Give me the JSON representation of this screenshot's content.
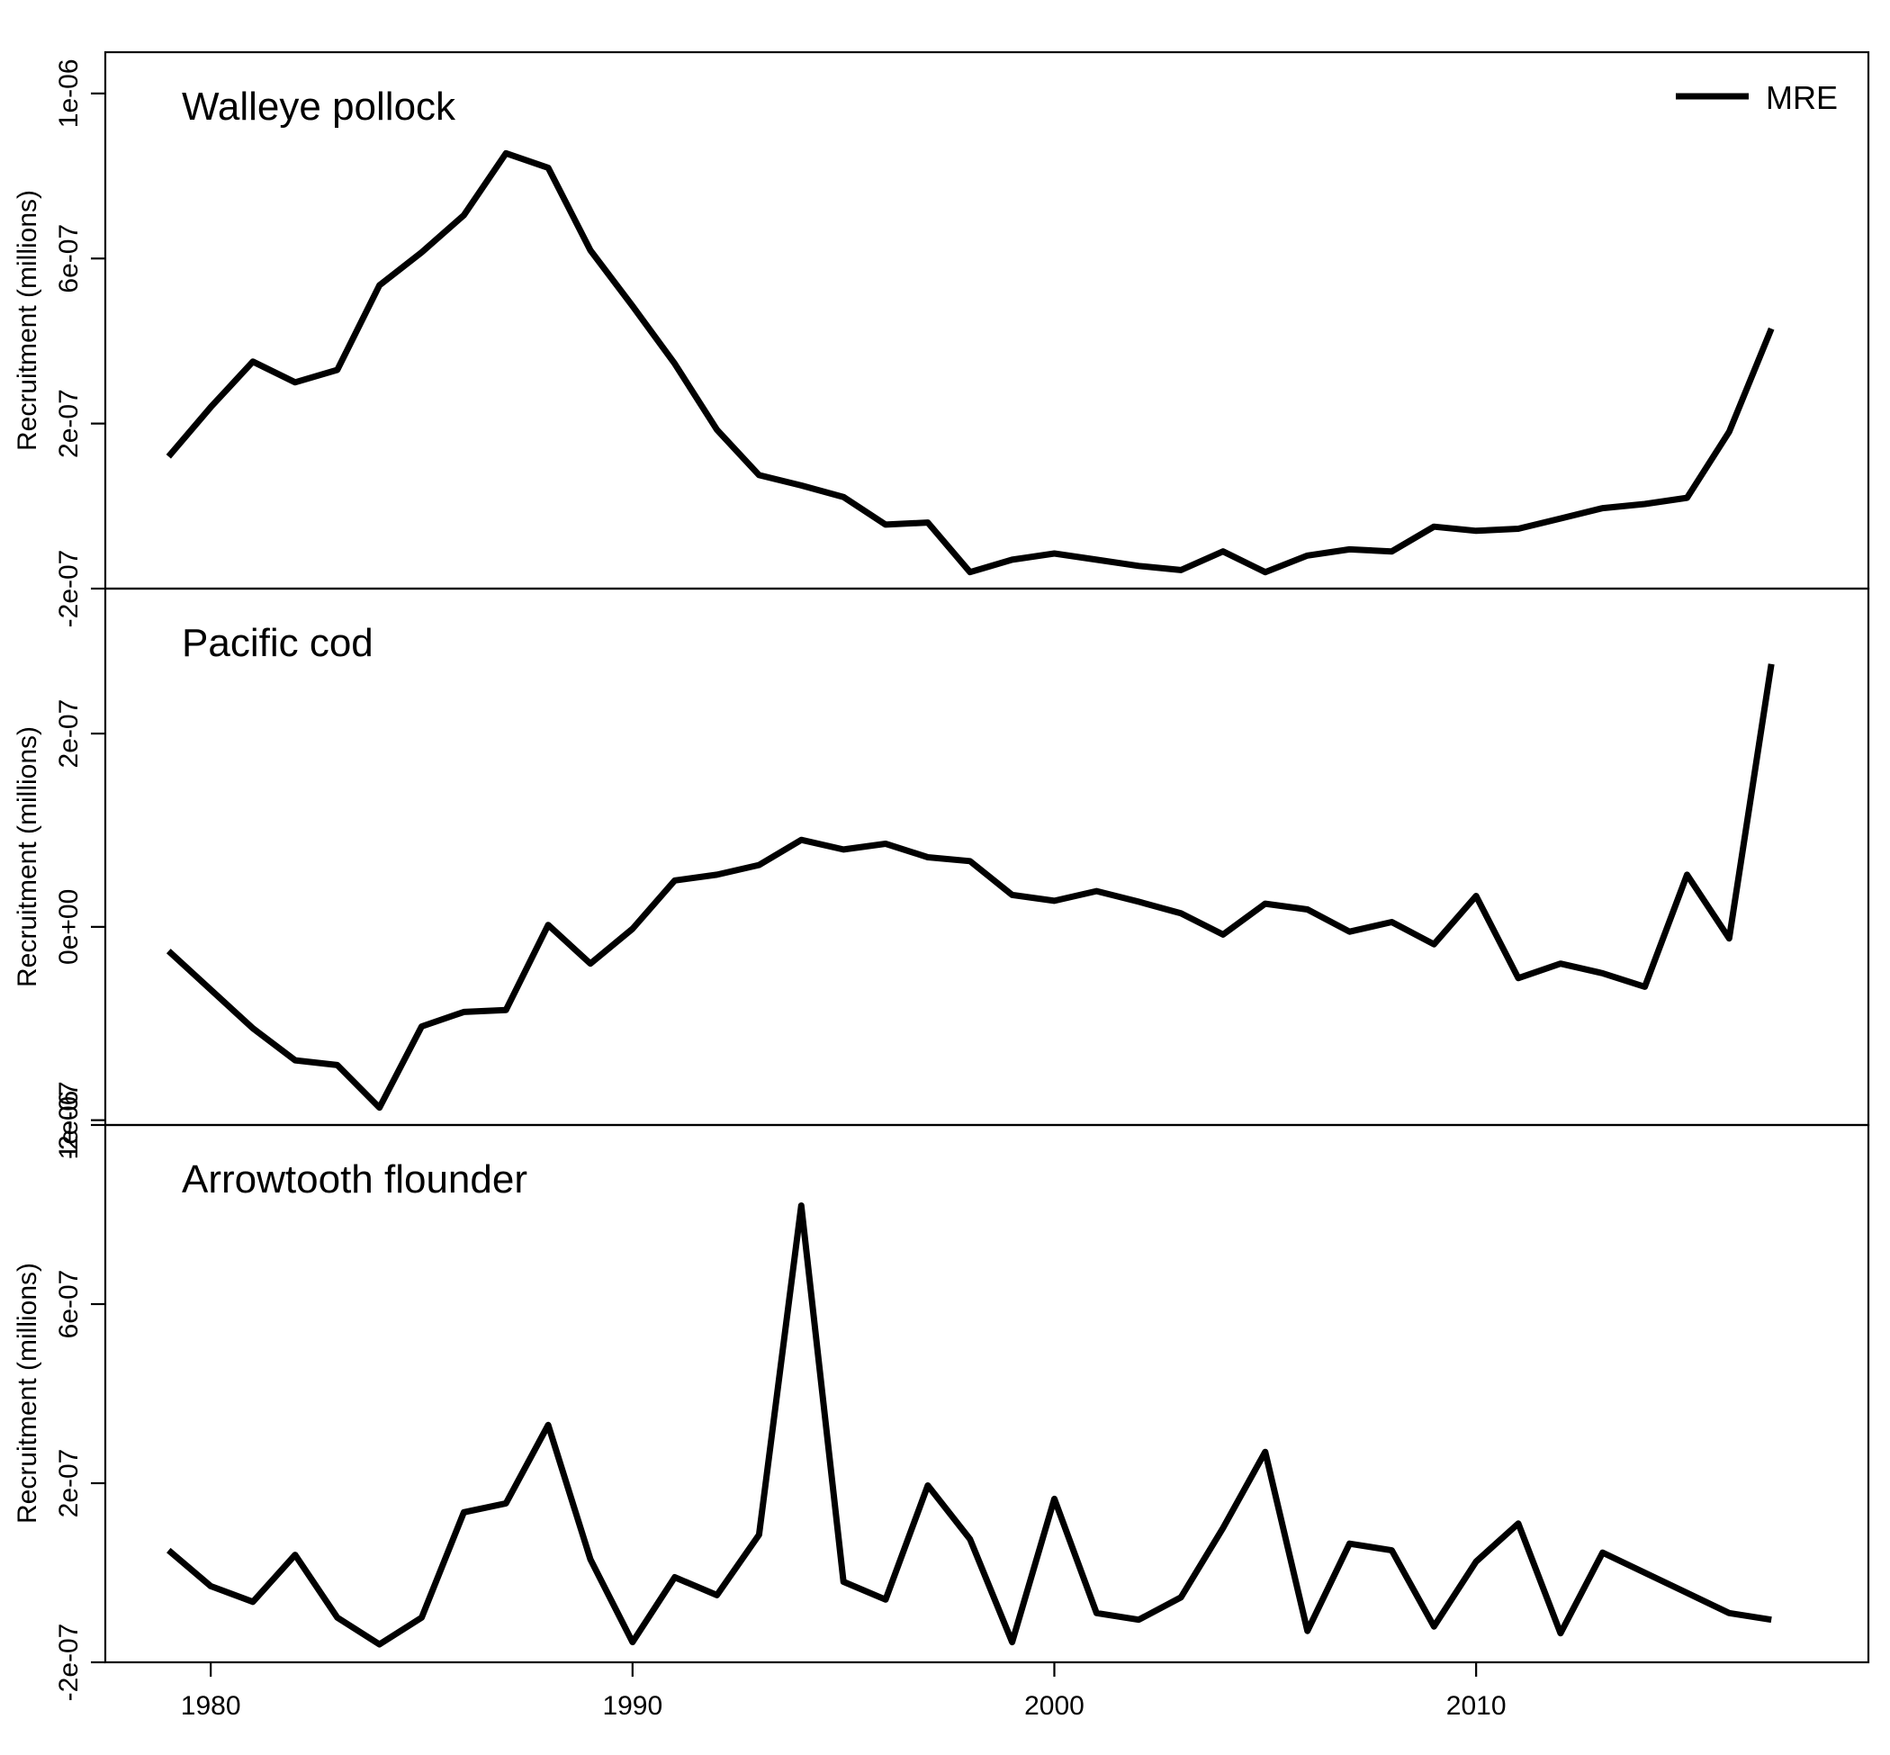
{
  "chart_data": {
    "type": "line",
    "legend": {
      "entries": [
        "MRE"
      ],
      "placement": "top-right"
    },
    "x_axis": {
      "ticks": [
        1980,
        1990,
        2000,
        2010
      ],
      "labels": [
        "1980",
        "1990",
        "2000",
        "2010"
      ],
      "range": [
        1977.5,
        2019.3
      ]
    },
    "panels": [
      {
        "title": "Walleye pollock",
        "ylabel": "Recruitment (millions)",
        "ylim": [
          -2e-07,
          1.1e-06
        ],
        "yticks": [
          -2e-07,
          2e-07,
          6e-07,
          1e-06
        ],
        "ytick_labels": [
          "-2e-07",
          "2e-07",
          "6e-07",
          "1e-06"
        ],
        "series": [
          {
            "name": "MRE",
            "x": [
              1979,
              1980,
              1981,
              1982,
              1983,
              1984,
              1985,
              1986,
              1987,
              1988,
              1989,
              1990,
              1991,
              1992,
              1993,
              1994,
              1995,
              1996,
              1997,
              1998,
              1999,
              2000,
              2001,
              2002,
              2003,
              2004,
              2005,
              2006,
              2007,
              2008,
              2009,
              2010,
              2011,
              2012,
              2013,
              2014,
              2015,
              2016,
              2017
            ],
            "values": [
              1.2e-07,
              2.4e-07,
              3.5e-07,
              3e-07,
              3.3e-07,
              5.35e-07,
              6.15e-07,
              7.05e-07,
              8.55e-07,
              8.2e-07,
              6.2e-07,
              4.85e-07,
              3.45e-07,
              1.85e-07,
              7.5e-08,
              5e-08,
              2.2e-08,
              -4.5e-08,
              -4e-08,
              -1.6e-07,
              -1.3e-07,
              -1.15e-07,
              -1.3e-07,
              -1.45e-07,
              -1.55e-07,
              -1.1e-07,
              -1.6e-07,
              -1.2e-07,
              -1.05e-07,
              -1.1e-07,
              -5e-08,
              -6e-08,
              -5.5e-08,
              -3e-08,
              -5e-09,
              5e-09,
              2e-08,
              1.8e-07,
              4.3e-07
            ]
          }
        ]
      },
      {
        "title": "Pacific cod",
        "ylabel": "Recruitment (millions)",
        "ylim": [
          -2.05e-07,
          3.5e-07
        ],
        "yticks": [
          -2e-07,
          0,
          2e-07
        ],
        "ytick_labels": [
          "-2e-07",
          "0e+00",
          "2e-07"
        ],
        "series": [
          {
            "name": "MRE",
            "x": [
              1979,
              1980,
              1981,
              1982,
              1983,
              1984,
              1985,
              1986,
              1987,
              1988,
              1989,
              1990,
              1991,
              1992,
              1993,
              1994,
              1995,
              1996,
              1997,
              1998,
              1999,
              2000,
              2001,
              2002,
              2003,
              2004,
              2005,
              2006,
              2007,
              2008,
              2009,
              2010,
              2011,
              2012,
              2013,
              2014,
              2015,
              2016,
              2017
            ],
            "values": [
              -2.5e-08,
              -6.5e-08,
              -1.05e-07,
              -1.38e-07,
              -1.43e-07,
              -1.87e-07,
              -1.03e-07,
              -8.8e-08,
              -8.6e-08,
              2e-09,
              -3.8e-08,
              -2e-09,
              4.8e-08,
              5.4e-08,
              6.4e-08,
              9e-08,
              8e-08,
              8.6e-08,
              7.2e-08,
              6.8e-08,
              3.3e-08,
              2.7e-08,
              3.7e-08,
              2.6e-08,
              1.4e-08,
              -8e-09,
              2.4e-08,
              1.8e-08,
              -5e-09,
              5e-09,
              -1.8e-08,
              3.2e-08,
              -5.3e-08,
              -3.8e-08,
              -4.8e-08,
              -6.2e-08,
              5.4e-08,
              -1.2e-08,
              2.72e-07
            ]
          }
        ]
      },
      {
        "title": "Arrowtooth flounder",
        "ylabel": "Recruitment (millions)",
        "ylim": [
          -2e-07,
          1e-06
        ],
        "yticks": [
          -2e-07,
          2e-07,
          6e-07,
          1e-06
        ],
        "ytick_labels": [
          "-2e-07",
          "2e-07",
          "6e-07",
          "1e-06"
        ],
        "series": [
          {
            "name": "MRE",
            "x": [
              1979,
              1980,
              1981,
              1982,
              1983,
              1984,
              1985,
              1986,
              1987,
              1988,
              1989,
              1990,
              1991,
              1992,
              1993,
              1994,
              1995,
              1996,
              1997,
              1998,
              1999,
              2000,
              2001,
              2002,
              2003,
              2004,
              2005,
              2006,
              2007,
              2008,
              2009,
              2010,
              2011,
              2012,
              2013,
              2014,
              2015,
              2016,
              2017
            ],
            "values": [
              5e-08,
              -3e-08,
              -6.5e-08,
              4e-08,
              -1e-07,
              -1.6e-07,
              -1e-07,
              1.35e-07,
              1.55e-07,
              3.3e-07,
              3e-08,
              -1.55e-07,
              -1e-08,
              -5e-08,
              8.5e-08,
              8.2e-07,
              -2e-08,
              -6e-08,
              1.95e-07,
              7.5e-08,
              -1.55e-07,
              1.65e-07,
              -9e-08,
              -1.05e-07,
              -5.5e-08,
              1e-07,
              2.7e-07,
              -1.3e-07,
              6.5e-08,
              5e-08,
              -1.2e-07,
              2.5e-08,
              1.1e-07,
              -1.35e-07,
              4.5e-08,
              0.0,
              -4.5e-08,
              -9e-08,
              -1.05e-07
            ]
          }
        ]
      }
    ]
  }
}
